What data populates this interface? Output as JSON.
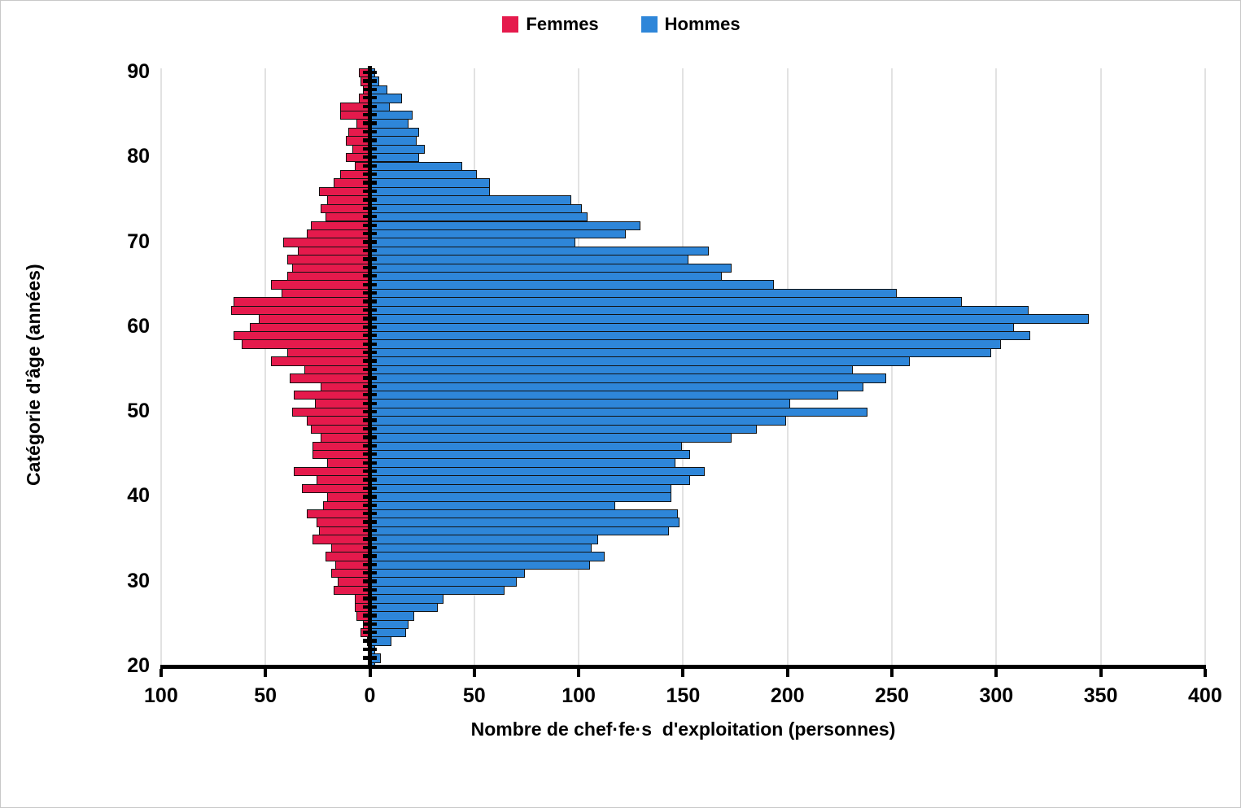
{
  "chart_data": {
    "type": "bar",
    "variant": "population-pyramid",
    "title": "",
    "xlabel": "Nombre de chef·fe·s  d'exploitation (personnes)",
    "ylabel": "Catégorie d'âge (années)",
    "legend_position": "top-center",
    "grid": true,
    "xlim": [
      -100,
      400
    ],
    "x_tick_values": [
      -100,
      -50,
      0,
      50,
      100,
      150,
      200,
      250,
      300,
      350,
      400
    ],
    "x_tick_labels": [
      "100",
      "50",
      "0",
      "50",
      "100",
      "150",
      "200",
      "250",
      "300",
      "350",
      "400"
    ],
    "y_tick_values": [
      90,
      80,
      70,
      60,
      50,
      40,
      30,
      20
    ],
    "y_tick_labels": [
      "90",
      "80",
      "70",
      "60",
      "50",
      "40",
      "30",
      "20"
    ],
    "ages_start": 20,
    "ages_end": 90,
    "series": [
      {
        "name": "Femmes",
        "color": "#E51A4C",
        "direction": "left",
        "values_by_age_20_to_90": [
          0,
          0,
          0,
          1,
          4,
          3,
          6,
          7,
          7,
          17,
          15,
          18,
          16,
          21,
          18,
          27,
          24,
          25,
          30,
          22,
          20,
          32,
          25,
          36,
          20,
          27,
          27,
          23,
          28,
          30,
          37,
          26,
          36,
          23,
          38,
          31,
          47,
          39,
          61,
          65,
          57,
          53,
          66,
          65,
          42,
          47,
          39,
          37,
          39,
          34,
          41,
          30,
          28,
          21,
          23,
          20,
          24,
          17,
          14,
          7,
          11,
          8,
          11,
          10,
          6,
          14,
          14,
          5,
          3,
          4,
          5
        ]
      },
      {
        "name": "Hommes",
        "color": "#2E86D9",
        "direction": "right",
        "values_by_age_20_to_90": [
          2,
          5,
          2,
          10,
          17,
          18,
          21,
          32,
          35,
          64,
          70,
          74,
          105,
          112,
          106,
          109,
          143,
          148,
          147,
          117,
          144,
          144,
          153,
          160,
          146,
          153,
          149,
          173,
          185,
          199,
          238,
          201,
          224,
          236,
          247,
          231,
          258,
          297,
          302,
          316,
          308,
          344,
          315,
          283,
          252,
          193,
          168,
          173,
          152,
          162,
          98,
          122,
          129,
          104,
          101,
          96,
          57,
          57,
          51,
          44,
          23,
          26,
          22,
          23,
          18,
          20,
          9,
          15,
          8,
          4,
          2
        ]
      }
    ],
    "colors": {
      "femmes": "#E51A4C",
      "hommes": "#2E86D9",
      "axis": "#000000",
      "gridline": "#E2E2E2",
      "background": "#FFFFFF"
    }
  }
}
